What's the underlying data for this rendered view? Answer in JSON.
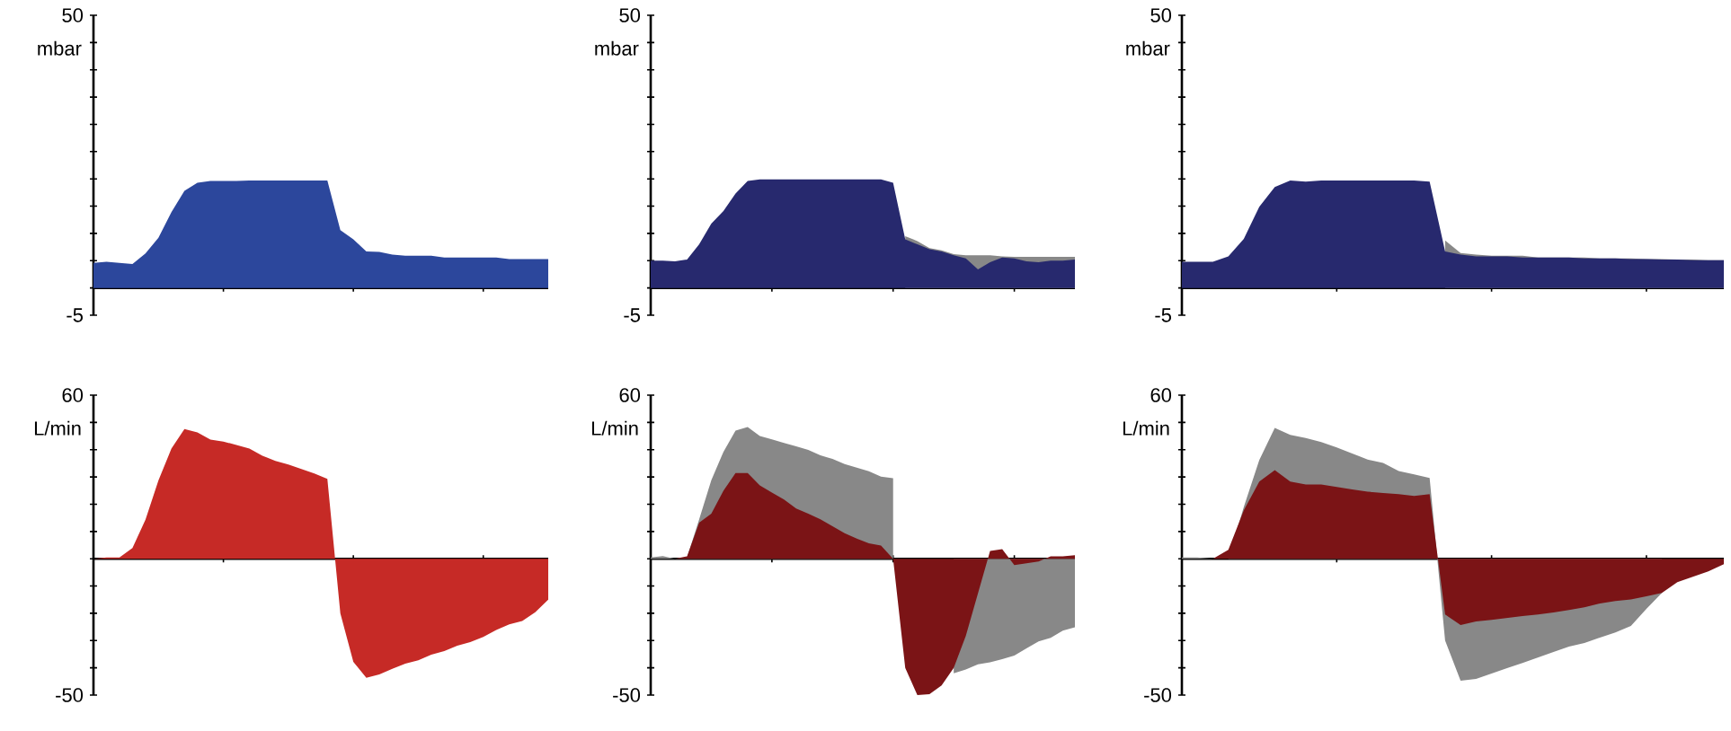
{
  "chart_data": [
    {
      "type": "area",
      "ylabel": "mbar",
      "categories": [
        null,
        null,
        null,
        null,
        null,
        null,
        null,
        null,
        null,
        null,
        null,
        null,
        null,
        null,
        null,
        null,
        null,
        null,
        null,
        null,
        null,
        null,
        null,
        null,
        null,
        null,
        null,
        null,
        null,
        null,
        null,
        null,
        null,
        null,
        null,
        null
      ],
      "ylim": [
        -5,
        50
      ],
      "yticks": [
        -5,
        {
          "value": 0,
          "label": null
        },
        {
          "value": 5,
          "label": null
        },
        {
          "value": 10,
          "label": null
        },
        {
          "value": 15,
          "label": null
        },
        {
          "value": 20,
          "label": null
        },
        {
          "value": 25,
          "label": null
        },
        {
          "value": 30,
          "label": null
        },
        {
          "value": 35,
          "label": null
        },
        {
          "value": 40,
          "label": null
        },
        {
          "value": 45,
          "label": null
        },
        50
      ],
      "tick_labels": "y",
      "series": [
        {
          "color": "#2c479c",
          "values": [
            4.6,
            4.8,
            4.6,
            4.4,
            6.3,
            9.2,
            13.9,
            17.8,
            19.3,
            19.6,
            19.6,
            19.6,
            19.7,
            19.7,
            19.7,
            19.7,
            19.7,
            19.7,
            19.7,
            10.6,
            8.9,
            6.7,
            6.6,
            6.1,
            5.9,
            5.9,
            5.9,
            5.6,
            5.6,
            5.6,
            5.6,
            5.6,
            5.3,
            5.3,
            5.3,
            5.3
          ]
        }
      ]
    },
    {
      "type": "area",
      "ylabel": "mbar",
      "categories": [
        null,
        null,
        null,
        null,
        null,
        null,
        null,
        null,
        null,
        null,
        null,
        null,
        null,
        null,
        null,
        null,
        null,
        null,
        null,
        null,
        null,
        null,
        null,
        null,
        null,
        null,
        null,
        null,
        null,
        null,
        null,
        null,
        null,
        null,
        null,
        null
      ],
      "ylim": [
        -5,
        50
      ],
      "yticks": [
        -5,
        {
          "value": 0,
          "label": null
        },
        {
          "value": 5,
          "label": null
        },
        {
          "value": 10,
          "label": null
        },
        {
          "value": 15,
          "label": null
        },
        {
          "value": 20,
          "label": null
        },
        {
          "value": 25,
          "label": null
        },
        {
          "value": 30,
          "label": null
        },
        {
          "value": 35,
          "label": null
        },
        {
          "value": 40,
          "label": null
        },
        {
          "value": 45,
          "label": null
        },
        50
      ],
      "tick_labels": "y",
      "series": [
        {
          "color": "#888888",
          "values": [
            null,
            null,
            null,
            null,
            null,
            null,
            null,
            null,
            null,
            null,
            null,
            null,
            null,
            null,
            null,
            null,
            null,
            null,
            null,
            null,
            null,
            9.5,
            8.6,
            7.3,
            6.9,
            6.2,
            6.0,
            6.0,
            6.0,
            5.8,
            5.7,
            5.7,
            5.7,
            5.7,
            5.7,
            5.7
          ]
        },
        {
          "color": "#27296e",
          "values": [
            5.0,
            5.0,
            4.9,
            5.2,
            8.0,
            11.8,
            14.1,
            17.3,
            19.6,
            19.9,
            19.9,
            19.9,
            19.9,
            19.9,
            19.9,
            19.9,
            19.9,
            19.9,
            19.9,
            19.9,
            19.3,
            8.9,
            8.0,
            7.1,
            6.7,
            6.0,
            5.4,
            3.4,
            4.7,
            5.6,
            5.4,
            4.9,
            4.7,
            5.0,
            5.0,
            5.2
          ]
        }
      ]
    },
    {
      "type": "area",
      "ylabel": "mbar",
      "categories": [
        null,
        null,
        null,
        null,
        null,
        null,
        null,
        null,
        null,
        null,
        null,
        null,
        null,
        null,
        null,
        null,
        null,
        null,
        null,
        null,
        null,
        null,
        null,
        null,
        null,
        null,
        null,
        null,
        null,
        null,
        null,
        null,
        null,
        null,
        null,
        null
      ],
      "ylim": [
        -5,
        50
      ],
      "yticks": [
        -5,
        {
          "value": 0,
          "label": null
        },
        {
          "value": 5,
          "label": null
        },
        {
          "value": 10,
          "label": null
        },
        {
          "value": 15,
          "label": null
        },
        {
          "value": 20,
          "label": null
        },
        {
          "value": 25,
          "label": null
        },
        {
          "value": 30,
          "label": null
        },
        {
          "value": 35,
          "label": null
        },
        {
          "value": 40,
          "label": null
        },
        {
          "value": 45,
          "label": null
        },
        50
      ],
      "tick_labels": "y",
      "series": [
        {
          "color": "#888888",
          "values": [
            null,
            null,
            null,
            null,
            null,
            null,
            null,
            null,
            null,
            null,
            null,
            null,
            null,
            null,
            null,
            null,
            null,
            8.7,
            6.4,
            6.1,
            5.9,
            5.9,
            5.9,
            5.6,
            5.6,
            5.6,
            5.6,
            5.4,
            5.4,
            5.4,
            5.3,
            5.3,
            5.2,
            5.2,
            5.1,
            5.1
          ]
        },
        {
          "color": "#27296e",
          "values": [
            4.8,
            4.8,
            4.8,
            5.8,
            9.0,
            14.9,
            18.5,
            19.7,
            19.5,
            19.7,
            19.7,
            19.7,
            19.7,
            19.7,
            19.7,
            19.7,
            19.5,
            6.7,
            6.1,
            5.8,
            5.8,
            5.8,
            5.6,
            5.6,
            5.6,
            5.6,
            5.4,
            5.4,
            5.4,
            5.3,
            5.3,
            5.2,
            5.2,
            5.1,
            5.1,
            5.1
          ]
        }
      ]
    },
    {
      "type": "area",
      "ylabel": "L/min",
      "categories": [
        null,
        null,
        null,
        null,
        null,
        null,
        null,
        null,
        null,
        null,
        null,
        null,
        null,
        null,
        null,
        null,
        null,
        null,
        null,
        null,
        null,
        null,
        null,
        null,
        null,
        null,
        null,
        null,
        null,
        null,
        null,
        null,
        null,
        null,
        null,
        null
      ],
      "ylim": [
        -50,
        60
      ],
      "yticks": [
        -50,
        {
          "value": -40,
          "label": null
        },
        {
          "value": -30,
          "label": null
        },
        {
          "value": -20,
          "label": null
        },
        {
          "value": -10,
          "label": null
        },
        {
          "value": 0,
          "label": null
        },
        {
          "value": 10,
          "label": null
        },
        {
          "value": 20,
          "label": null
        },
        {
          "value": 30,
          "label": null
        },
        {
          "value": 40,
          "label": null
        },
        {
          "value": 50,
          "label": null
        },
        60
      ],
      "tick_labels": "y",
      "series": [
        {
          "color": "#c62a26",
          "values": [
            0,
            0.5,
            0.5,
            3.9,
            14.3,
            28.7,
            40.4,
            47.6,
            46.3,
            43.7,
            43,
            41.7,
            40.4,
            37.8,
            35.9,
            34.6,
            32.9,
            31.3,
            29.3,
            -20,
            -37.8,
            -43.7,
            -42.4,
            -40.4,
            -38.5,
            -37.2,
            -35.2,
            -33.9,
            -31.9,
            -30.6,
            -28.7,
            -26.1,
            -24.1,
            -22.8,
            -19.6,
            -15
          ]
        }
      ]
    },
    {
      "type": "area",
      "ylabel": "L/min",
      "categories": [
        null,
        null,
        null,
        null,
        null,
        null,
        null,
        null,
        null,
        null,
        null,
        null,
        null,
        null,
        null,
        null,
        null,
        null,
        null,
        null,
        null,
        null,
        null,
        null,
        null,
        null,
        null,
        null,
        null,
        null,
        null,
        null,
        null,
        null,
        null,
        null
      ],
      "ylim": [
        -50,
        60
      ],
      "yticks": [
        -50,
        {
          "value": -40,
          "label": null
        },
        {
          "value": -30,
          "label": null
        },
        {
          "value": -20,
          "label": null
        },
        {
          "value": -10,
          "label": null
        },
        {
          "value": 0,
          "label": null
        },
        {
          "value": 10,
          "label": null
        },
        {
          "value": 20,
          "label": null
        },
        {
          "value": 30,
          "label": null
        },
        {
          "value": 40,
          "label": null
        },
        {
          "value": 50,
          "label": null
        },
        60
      ],
      "tick_labels": "y",
      "series": [
        {
          "color": "#888888",
          "values": [
            0.5,
            1,
            0,
            0.5,
            14.5,
            28.8,
            39.2,
            47,
            48.3,
            45,
            43.8,
            42.5,
            41.2,
            39.9,
            37.9,
            36.6,
            34.7,
            33.4,
            32.1,
            30.1,
            29.5,
            null,
            null,
            null,
            null,
            -42,
            -40.6,
            -38.7,
            -38,
            -36.8,
            -35.5,
            -32.9,
            -30.3,
            -29,
            -26.4,
            -25.1
          ]
        },
        {
          "color": "#7b1416",
          "values": [
            0,
            0,
            0,
            0.9,
            13.2,
            16.5,
            24.9,
            31.4,
            31.4,
            26.9,
            24.3,
            21.7,
            18.4,
            16.5,
            14.5,
            11.9,
            9.4,
            7.4,
            5.7,
            4.8,
            0,
            -40,
            -50,
            -49.7,
            -46.5,
            -40,
            -28.3,
            -12.7,
            2.9,
            3.5,
            -2.3,
            -1.7,
            -1.0,
            0.9,
            0.9,
            1.3
          ]
        }
      ]
    },
    {
      "type": "area",
      "ylabel": "L/min",
      "categories": [
        null,
        null,
        null,
        null,
        null,
        null,
        null,
        null,
        null,
        null,
        null,
        null,
        null,
        null,
        null,
        null,
        null,
        null,
        null,
        null,
        null,
        null,
        null,
        null,
        null,
        null,
        null,
        null,
        null,
        null,
        null,
        null,
        null,
        null,
        null,
        null
      ],
      "ylim": [
        -50,
        60
      ],
      "yticks": [
        -50,
        {
          "value": -40,
          "label": null
        },
        {
          "value": -30,
          "label": null
        },
        {
          "value": -20,
          "label": null
        },
        {
          "value": -10,
          "label": null
        },
        {
          "value": 0,
          "label": null
        },
        {
          "value": 10,
          "label": null
        },
        {
          "value": 20,
          "label": null
        },
        {
          "value": 30,
          "label": null
        },
        {
          "value": 40,
          "label": null
        },
        {
          "value": 50,
          "label": null
        },
        60
      ],
      "tick_labels": "y",
      "series": [
        {
          "color": "#888888",
          "values": [
            0.5,
            0.5,
            0,
            0,
            19,
            36.2,
            48,
            45.4,
            44.3,
            42.8,
            40.8,
            38.6,
            36.4,
            35.1,
            32.2,
            30.9,
            29.6,
            -30,
            -44.7,
            -44.1,
            -42.1,
            -40.1,
            -38.2,
            -36.2,
            -34.2,
            -32.2,
            -30.9,
            -28.9,
            -27,
            -24.6,
            -18.4,
            -12.5,
            null,
            null,
            null,
            null
          ]
        },
        {
          "color": "#7b1416",
          "values": [
            0,
            0,
            0,
            3.3,
            17.8,
            28.3,
            32.5,
            28.3,
            27.2,
            27.2,
            26.3,
            25.4,
            24.6,
            24.1,
            23.7,
            23,
            23.7,
            -20.4,
            -24.3,
            -23,
            -22.4,
            -21.7,
            -21,
            -20.4,
            -19.7,
            -18.8,
            -17.8,
            -16.4,
            -15.5,
            -14.9,
            -13.8,
            -12.5,
            -8.6,
            -6.6,
            -4.6,
            -2.0
          ]
        }
      ]
    }
  ]
}
